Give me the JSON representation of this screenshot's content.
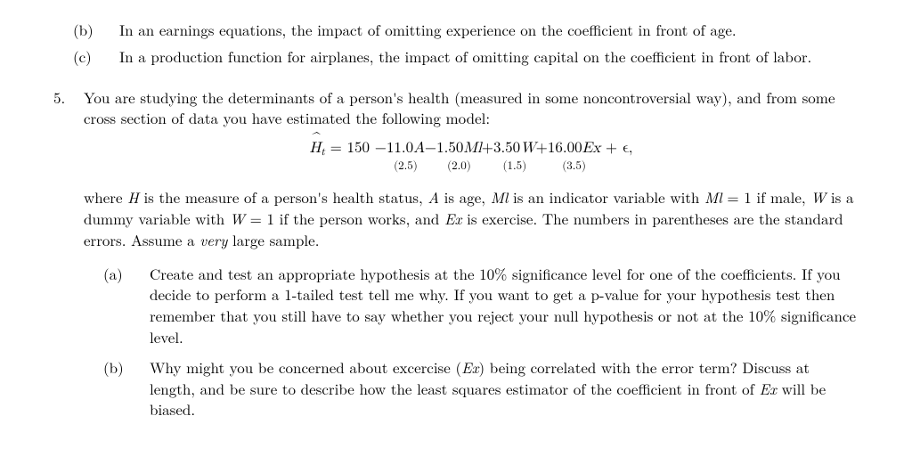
{
  "prev_sub": {
    "b": {
      "label": "(b)",
      "text": "In an earnings equations, the impact of omitting experience on the coefficient in front of age."
    },
    "c": {
      "label": "(c)",
      "text": "In a production function for airplanes, the impact of omitting capital on the coefficient in front of labor."
    }
  },
  "q5": {
    "label": "5.",
    "intro": "You are studying the determinants of a person's health (measured in some noncontroversial way), and from some cross section of data you have estimated the following model:",
    "equation": {
      "lhs_var": "H",
      "lhs_sub": "t",
      "intercept": "150",
      "terms": [
        {
          "op": "−",
          "coef": "11.0",
          "se": "(2.5)",
          "var": "A"
        },
        {
          "op": "−",
          "coef": "1.50",
          "se": "(2.0)",
          "var": "Ml"
        },
        {
          "op": "+",
          "coef": "3.50",
          "se": "(1.5)",
          "var": "W"
        },
        {
          "op": "+",
          "coef": "16.00",
          "se": "(3.5)",
          "var": "Ex"
        }
      ],
      "tail": "+ ϵ,"
    },
    "defs_pre": "where ",
    "defs_H": " is the measure of a person's health status, ",
    "defs_A": " is age, ",
    "defs_Ml": " is an indicator variable with ",
    "defs_Ml2": " = 1 if male, ",
    "defs_W": " is a dummy variable with ",
    "defs_W2": " = 1 if the person works, and ",
    "defs_Ex": " is exercise. The numbers in parentheses are the standard errors. Assume a ",
    "very": "very",
    "defs_tail": " large sample.",
    "a": {
      "label": "(a)",
      "text": "Create and test an appropriate hypothesis at the 10% significance level for one of the coefficients. If you decide to perform a 1-tailed test tell me why. If you want to get a p-value for your hypothesis test then remember that you still have to say whether you reject your null hypothesis or not at the 10% significance level."
    },
    "b": {
      "label": "(b)",
      "text_pre": "Why might you be concerned about excercise (",
      "text_mid": ") being correlated with the error term? Discuss at length, and be sure to describe how the least squares estimator of the coefficient in front of ",
      "text_post": " will be biased."
    }
  },
  "vars": {
    "H": "H",
    "A": "A",
    "Ml": "Ml",
    "W": "W",
    "Ex": "Ex"
  }
}
